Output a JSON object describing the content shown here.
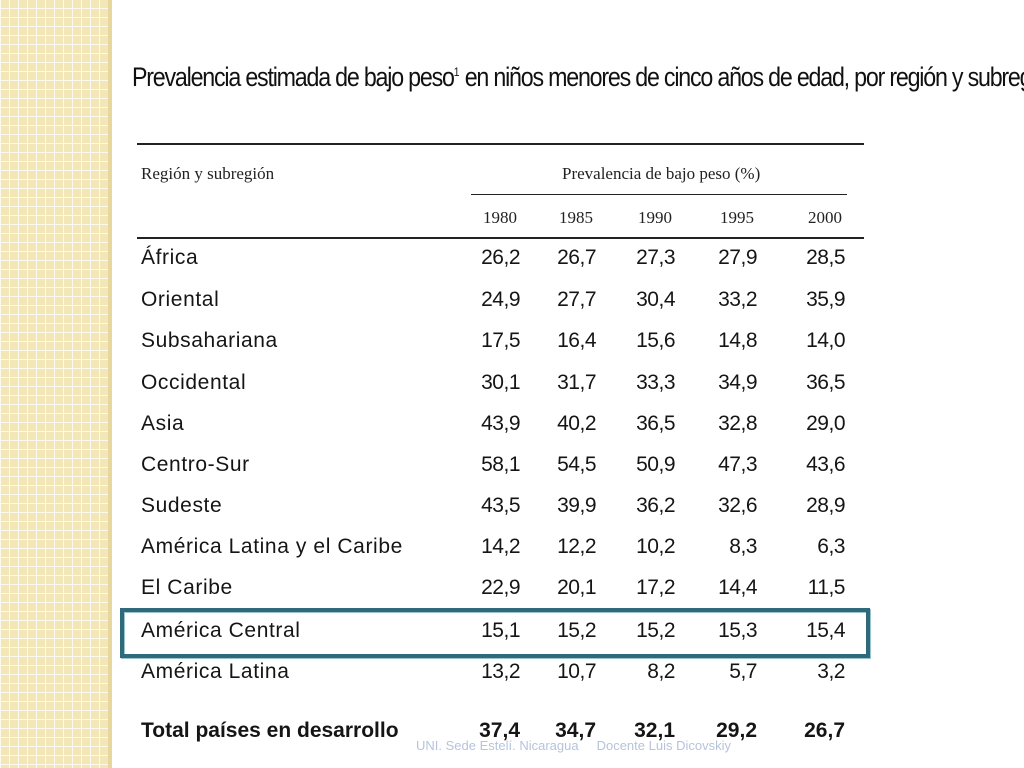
{
  "title": "Prevalencia estimada de bajo peso",
  "title_sup": "1",
  "title_rest": " en niños menores de cinco años de edad, por región y subregión",
  "table": {
    "header_region": "Región y subregión",
    "header_prevalence": "Prevalencia de bajo peso (%)",
    "years": [
      "1980",
      "1985",
      "1990",
      "1995",
      "2000"
    ],
    "rows": [
      {
        "label": "África",
        "values": [
          "26,2",
          "26,7",
          "27,3",
          "27,9",
          "28,5"
        ]
      },
      {
        "label": "Oriental",
        "values": [
          "24,9",
          "27,7",
          "30,4",
          "33,2",
          "35,9"
        ]
      },
      {
        "label": "Subsahariana",
        "values": [
          "17,5",
          "16,4",
          "15,6",
          "14,8",
          "14,0"
        ]
      },
      {
        "label": "Occidental",
        "values": [
          "30,1",
          "31,7",
          "33,3",
          "34,9",
          "36,5"
        ]
      },
      {
        "label": "Asia",
        "values": [
          "43,9",
          "40,2",
          "36,5",
          "32,8",
          "29,0"
        ]
      },
      {
        "label": "Centro-Sur",
        "values": [
          "58,1",
          "54,5",
          "50,9",
          "47,3",
          "43,6"
        ]
      },
      {
        "label": "Sudeste",
        "values": [
          "43,5",
          "39,9",
          "36,2",
          "32,6",
          "28,9"
        ]
      },
      {
        "label": "América Latina y el Caribe",
        "values": [
          "14,2",
          "12,2",
          "10,2",
          "8,3",
          "6,3"
        ]
      },
      {
        "label": "El Caribe",
        "values": [
          "22,9",
          "20,1",
          "17,2",
          "14,4",
          "11,5"
        ]
      },
      {
        "label": "América Central",
        "values": [
          "15,1",
          "15,2",
          "15,2",
          "15,3",
          "15,4"
        ],
        "highlighted": true
      },
      {
        "label": "América Latina",
        "values": [
          "13,2",
          "10,7",
          "8,2",
          "5,7",
          "3,2"
        ]
      },
      {
        "label": "Total países en desarrollo",
        "values": [
          "37,4",
          "34,7",
          "32,1",
          "29,2",
          "26,7"
        ],
        "bold": true
      }
    ]
  },
  "footer": {
    "left": "UNI. Sede Estelí. Nicaragua",
    "right": "Docente Luis Dicovskiy"
  },
  "colors": {
    "highlight_border": "#2e6a79",
    "side_strip": "#f3e7b8",
    "footer_text": "#b7c3dc"
  }
}
